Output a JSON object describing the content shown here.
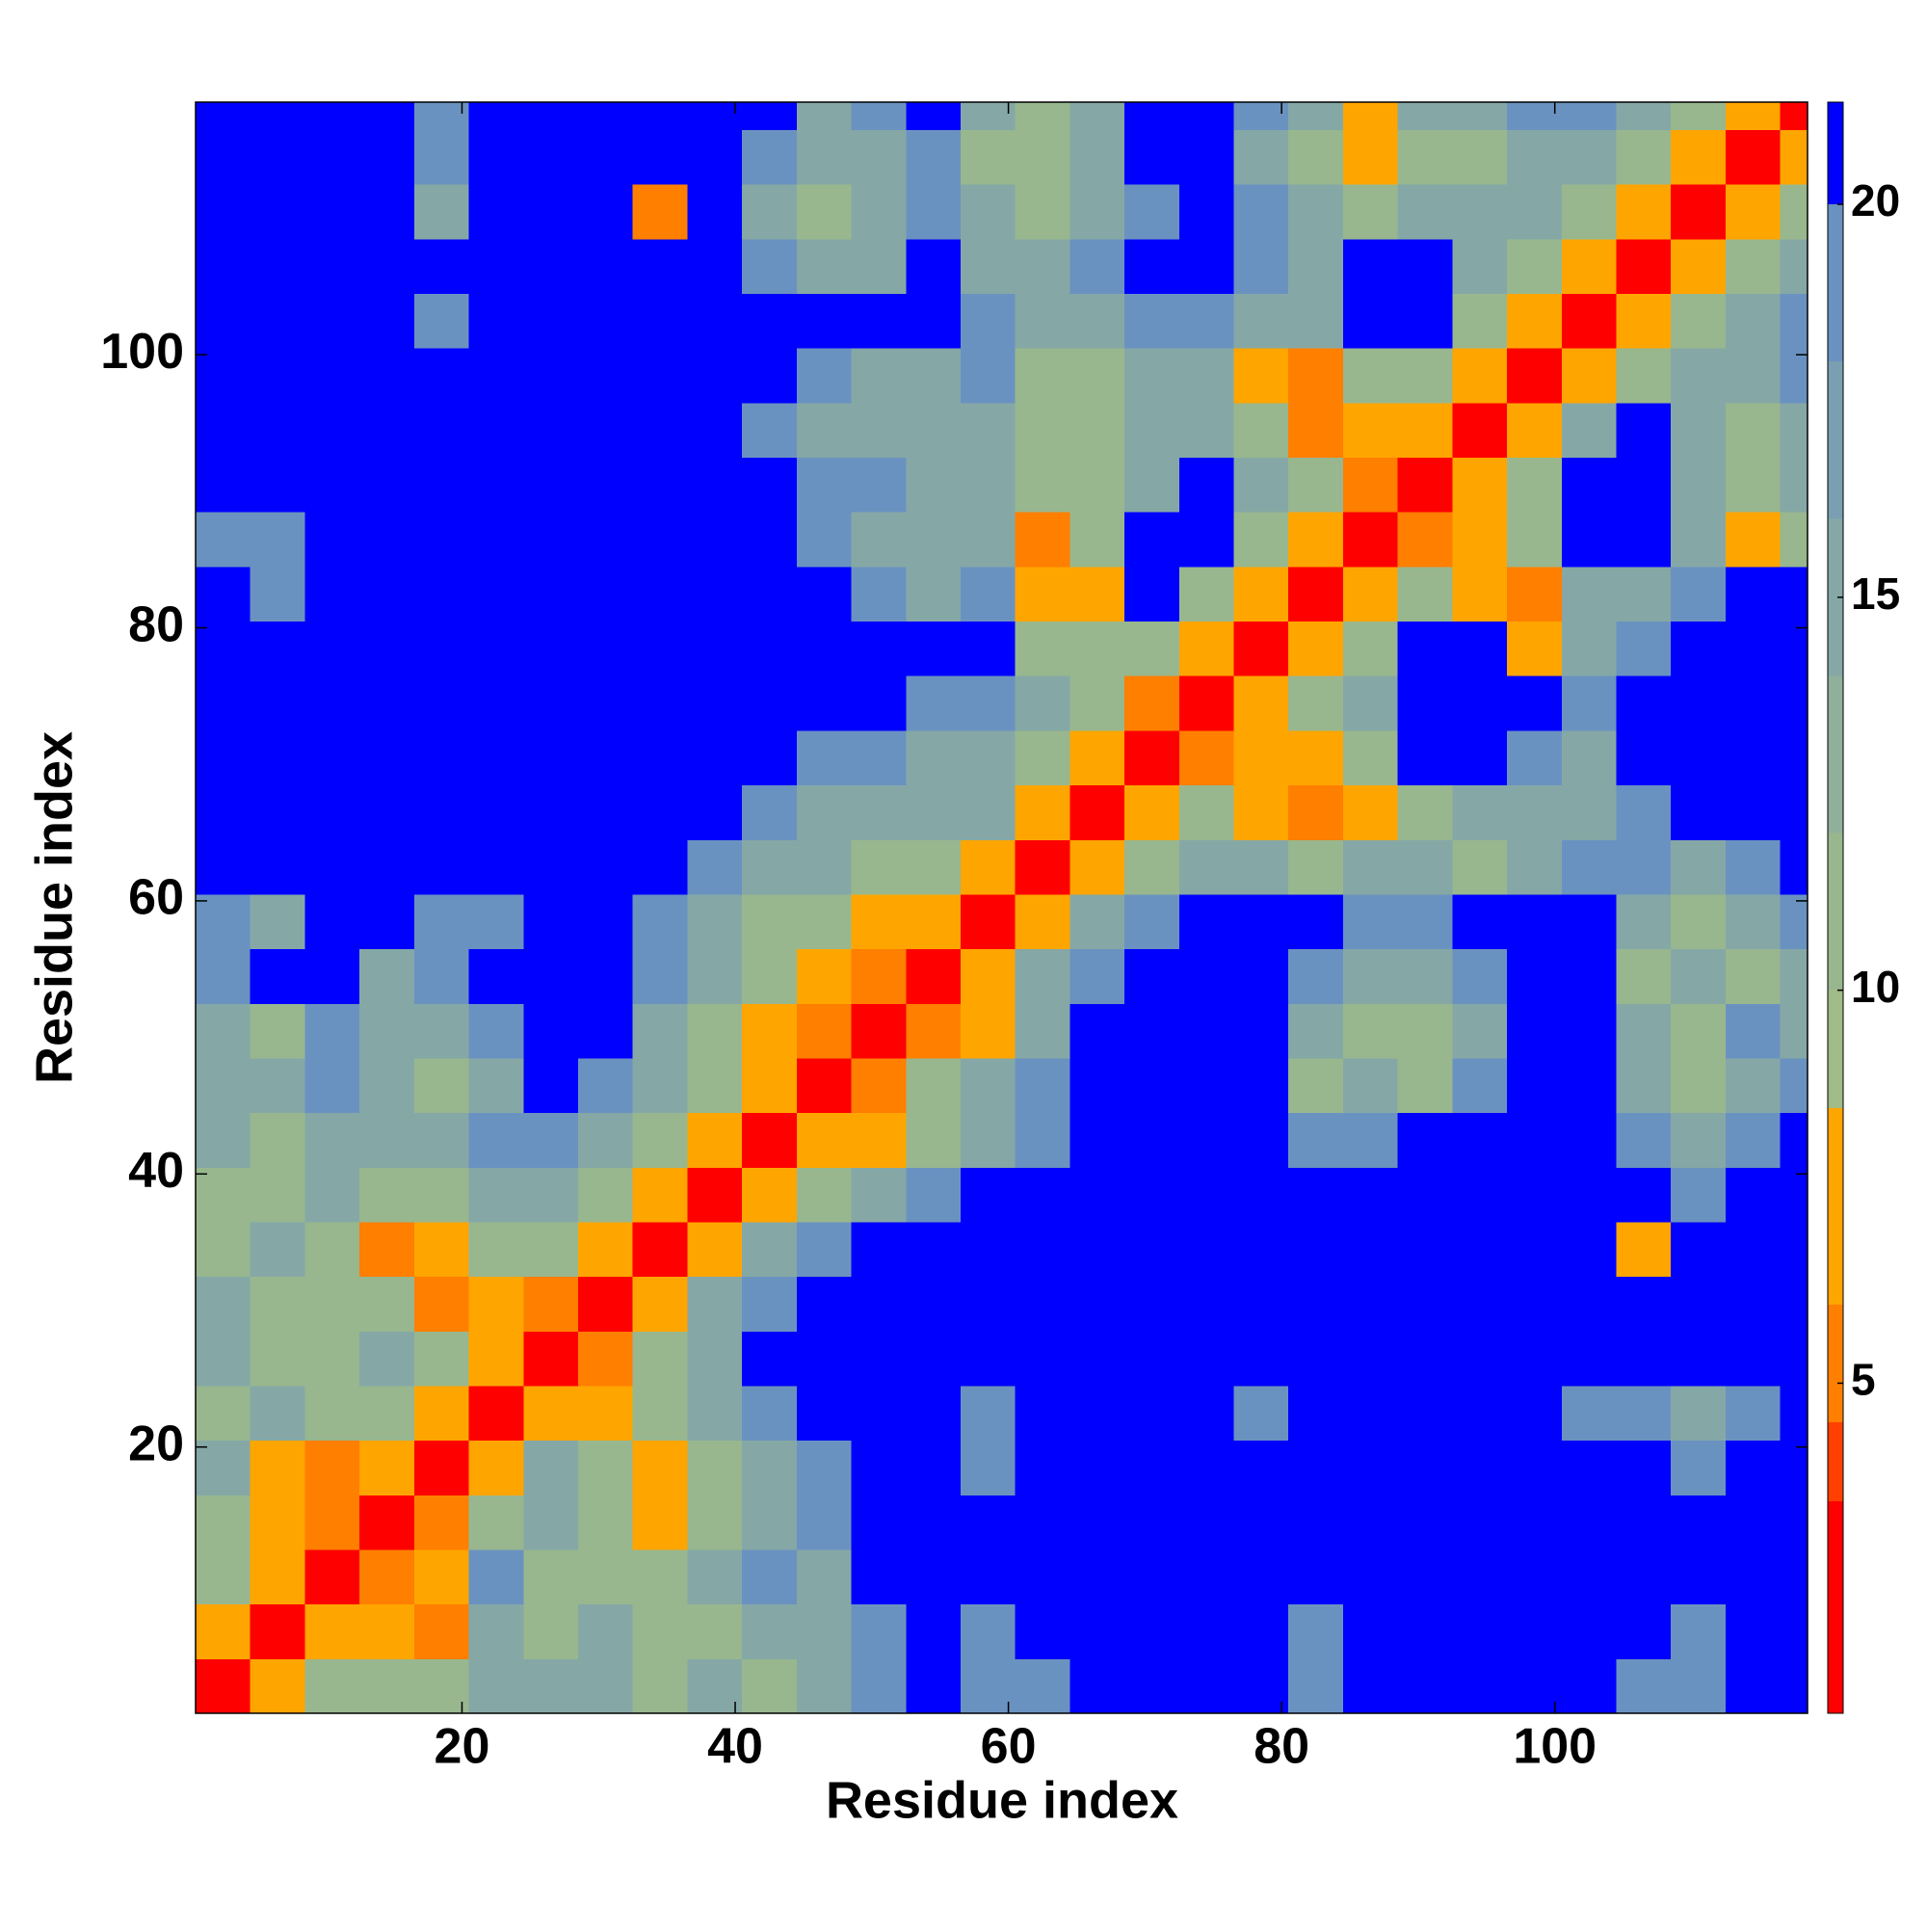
{
  "chart_data": {
    "type": "heatmap",
    "xlabel": "Residue index",
    "ylabel": "Residue index",
    "xlim": [
      0.5,
      118.5
    ],
    "ylim": [
      0.5,
      118.5
    ],
    "xticks": [
      20,
      40,
      60,
      80,
      100
    ],
    "yticks": [
      20,
      40,
      60,
      80,
      100
    ],
    "xbins": [
      0.5,
      4.5,
      8.5,
      12.5,
      16.5,
      20.5,
      24.5,
      28.5,
      32.5,
      36.5,
      40.5,
      44.5,
      48.5,
      52.5,
      56.5,
      60.5,
      64.5,
      68.5,
      72.5,
      76.5,
      80.5,
      84.5,
      88.5,
      92.5,
      96.5,
      100.5,
      104.5,
      108.5,
      112.5,
      116.5,
      118.5
    ],
    "ybins": [
      0.5,
      4.5,
      8.5,
      12.5,
      16.5,
      20.5,
      24.5,
      28.5,
      32.5,
      36.5,
      40.5,
      44.5,
      48.5,
      52.5,
      56.5,
      60.5,
      64.5,
      68.5,
      72.5,
      76.5,
      80.5,
      84.5,
      88.5,
      92.5,
      96.5,
      100.5,
      104.5,
      108.5,
      112.5,
      116.5,
      118.5
    ],
    "values": [
      [
        2,
        7,
        11,
        11,
        11,
        15,
        15,
        15,
        11,
        15,
        11,
        15,
        18,
        21,
        18,
        18,
        21,
        21,
        21,
        21,
        18,
        21,
        21,
        21,
        21,
        21,
        18,
        18,
        21,
        21
      ],
      [
        7,
        2,
        7,
        7,
        5,
        15,
        11,
        15,
        11,
        11,
        15,
        15,
        18,
        21,
        18,
        21,
        21,
        21,
        21,
        21,
        18,
        21,
        21,
        21,
        21,
        21,
        21,
        18,
        21,
        21
      ],
      [
        11,
        7,
        2,
        5,
        7,
        18,
        11,
        11,
        11,
        15,
        18,
        15,
        21,
        21,
        21,
        21,
        21,
        21,
        21,
        21,
        21,
        21,
        21,
        21,
        21,
        21,
        21,
        21,
        21,
        21
      ],
      [
        11,
        7,
        5,
        2,
        5,
        11,
        15,
        11,
        7,
        11,
        15,
        18,
        21,
        21,
        21,
        21,
        21,
        21,
        21,
        21,
        21,
        21,
        21,
        21,
        21,
        21,
        21,
        21,
        21,
        21
      ],
      [
        15,
        7,
        5,
        7,
        2,
        7,
        15,
        11,
        7,
        11,
        15,
        18,
        21,
        21,
        18,
        21,
        21,
        21,
        21,
        21,
        21,
        21,
        21,
        21,
        21,
        21,
        21,
        18,
        21,
        21
      ],
      [
        11,
        15,
        11,
        11,
        7,
        2,
        7,
        7,
        11,
        15,
        18,
        21,
        21,
        21,
        18,
        21,
        21,
        21,
        21,
        18,
        21,
        21,
        21,
        21,
        21,
        18,
        18,
        15,
        18,
        21
      ],
      [
        15,
        11,
        11,
        15,
        11,
        7,
        2,
        5,
        11,
        15,
        21,
        21,
        21,
        21,
        21,
        21,
        21,
        21,
        21,
        21,
        21,
        21,
        21,
        21,
        21,
        21,
        21,
        21,
        21,
        21
      ],
      [
        15,
        11,
        11,
        11,
        5,
        7,
        5,
        2,
        7,
        15,
        18,
        21,
        21,
        21,
        21,
        21,
        21,
        21,
        21,
        21,
        21,
        21,
        21,
        21,
        21,
        21,
        21,
        21,
        21,
        21
      ],
      [
        11,
        15,
        11,
        5,
        7,
        11,
        11,
        7,
        2,
        7,
        15,
        18,
        21,
        21,
        21,
        21,
        21,
        21,
        21,
        21,
        21,
        21,
        21,
        21,
        21,
        21,
        7,
        21,
        21,
        21
      ],
      [
        11,
        11,
        15,
        11,
        11,
        15,
        15,
        11,
        7,
        2,
        7,
        11,
        15,
        18,
        21,
        21,
        21,
        21,
        21,
        21,
        21,
        21,
        21,
        21,
        21,
        21,
        21,
        18,
        21,
        21
      ],
      [
        15,
        11,
        15,
        15,
        15,
        18,
        18,
        15,
        11,
        7,
        2,
        7,
        7,
        11,
        15,
        18,
        21,
        21,
        21,
        21,
        18,
        18,
        21,
        21,
        21,
        21,
        18,
        15,
        18,
        21
      ],
      [
        15,
        15,
        18,
        15,
        11,
        15,
        21,
        18,
        15,
        11,
        7,
        2,
        5,
        11,
        15,
        18,
        21,
        21,
        21,
        21,
        11,
        15,
        11,
        18,
        21,
        21,
        15,
        11,
        15,
        18
      ],
      [
        15,
        11,
        18,
        15,
        15,
        18,
        21,
        21,
        15,
        11,
        7,
        5,
        2,
        5,
        7,
        15,
        21,
        21,
        21,
        21,
        15,
        11,
        11,
        15,
        21,
        21,
        15,
        11,
        18,
        15
      ],
      [
        18,
        21,
        21,
        15,
        18,
        21,
        21,
        21,
        18,
        15,
        11,
        7,
        5,
        2,
        7,
        15,
        18,
        21,
        21,
        21,
        18,
        15,
        15,
        18,
        21,
        21,
        11,
        15,
        11,
        15
      ],
      [
        18,
        15,
        21,
        21,
        18,
        18,
        21,
        21,
        18,
        15,
        11,
        11,
        7,
        7,
        2,
        7,
        15,
        18,
        21,
        21,
        21,
        18,
        18,
        21,
        21,
        21,
        15,
        11,
        15,
        18
      ],
      [
        21,
        21,
        21,
        21,
        21,
        21,
        21,
        21,
        21,
        18,
        15,
        15,
        11,
        11,
        7,
        2,
        7,
        11,
        15,
        15,
        11,
        15,
        15,
        11,
        15,
        18,
        18,
        15,
        18,
        21
      ],
      [
        21,
        21,
        21,
        21,
        21,
        21,
        21,
        21,
        21,
        21,
        18,
        15,
        15,
        15,
        15,
        7,
        2,
        7,
        11,
        7,
        5,
        7,
        11,
        15,
        15,
        15,
        18,
        21,
        21,
        21
      ],
      [
        21,
        21,
        21,
        21,
        21,
        21,
        21,
        21,
        21,
        21,
        21,
        18,
        18,
        15,
        15,
        11,
        7,
        2,
        5,
        7,
        7,
        11,
        21,
        21,
        18,
        15,
        21,
        21,
        21,
        21
      ],
      [
        21,
        21,
        21,
        21,
        21,
        21,
        21,
        21,
        21,
        21,
        21,
        21,
        21,
        18,
        18,
        15,
        11,
        5,
        2,
        7,
        11,
        15,
        21,
        21,
        21,
        18,
        21,
        21,
        21,
        21
      ],
      [
        21,
        21,
        21,
        21,
        21,
        21,
        21,
        21,
        21,
        21,
        21,
        21,
        21,
        21,
        21,
        11,
        11,
        11,
        7,
        2,
        7,
        11,
        21,
        21,
        7,
        15,
        18,
        21,
        21,
        21
      ],
      [
        21,
        18,
        21,
        21,
        21,
        21,
        21,
        21,
        21,
        21,
        21,
        21,
        18,
        15,
        18,
        7,
        7,
        21,
        11,
        7,
        2,
        7,
        11,
        7,
        5,
        15,
        15,
        18,
        21,
        21
      ],
      [
        18,
        18,
        21,
        21,
        21,
        21,
        21,
        21,
        21,
        21,
        21,
        18,
        15,
        15,
        15,
        5,
        11,
        21,
        21,
        11,
        7,
        2,
        5,
        7,
        11,
        21,
        21,
        15,
        7,
        11
      ],
      [
        21,
        21,
        21,
        21,
        21,
        21,
        21,
        21,
        21,
        21,
        21,
        18,
        18,
        15,
        15,
        11,
        11,
        15,
        21,
        15,
        11,
        5,
        2,
        7,
        11,
        21,
        21,
        15,
        11,
        15
      ],
      [
        21,
        21,
        21,
        21,
        21,
        21,
        21,
        21,
        21,
        21,
        18,
        15,
        15,
        15,
        15,
        11,
        11,
        15,
        15,
        11,
        5,
        7,
        7,
        2,
        7,
        15,
        21,
        15,
        11,
        15
      ],
      [
        21,
        21,
        21,
        21,
        21,
        21,
        21,
        21,
        21,
        21,
        21,
        18,
        15,
        15,
        18,
        11,
        11,
        15,
        15,
        7,
        5,
        11,
        11,
        7,
        2,
        7,
        11,
        15,
        15,
        18
      ],
      [
        21,
        21,
        21,
        21,
        18,
        21,
        21,
        21,
        21,
        21,
        21,
        21,
        21,
        21,
        18,
        15,
        15,
        18,
        18,
        15,
        15,
        21,
        21,
        11,
        7,
        2,
        7,
        11,
        15,
        18
      ],
      [
        21,
        21,
        21,
        21,
        21,
        21,
        21,
        21,
        21,
        21,
        18,
        15,
        15,
        21,
        15,
        15,
        18,
        21,
        21,
        18,
        15,
        21,
        21,
        15,
        11,
        7,
        2,
        7,
        11,
        15
      ],
      [
        21,
        21,
        21,
        21,
        15,
        21,
        21,
        21,
        5,
        21,
        15,
        11,
        15,
        18,
        15,
        11,
        15,
        18,
        21,
        18,
        15,
        11,
        15,
        15,
        15,
        11,
        7,
        2,
        7,
        11
      ],
      [
        21,
        21,
        21,
        21,
        18,
        21,
        21,
        21,
        21,
        21,
        18,
        15,
        15,
        18,
        11,
        11,
        15,
        21,
        21,
        15,
        11,
        7,
        11,
        11,
        15,
        15,
        11,
        7,
        2,
        7
      ],
      [
        21,
        21,
        21,
        21,
        18,
        21,
        21,
        21,
        21,
        21,
        21,
        15,
        18,
        21,
        15,
        11,
        15,
        21,
        21,
        18,
        15,
        7,
        15,
        15,
        18,
        18,
        15,
        11,
        7,
        2
      ]
    ],
    "colorbar": {
      "levels": [
        0.8,
        3.5,
        4.5,
        6,
        8.5,
        10,
        12,
        14,
        16,
        18,
        20,
        21.3
      ],
      "colors": [
        "#ff0000",
        "#ff4000",
        "#ff7f00",
        "#ffa500",
        "#a0bc88",
        "#98b78e",
        "#8fb09a",
        "#85a8a6",
        "#7b9fb2",
        "#6a92c0",
        "#0000ff"
      ],
      "ticks": [
        5,
        10,
        15,
        20
      ]
    }
  }
}
